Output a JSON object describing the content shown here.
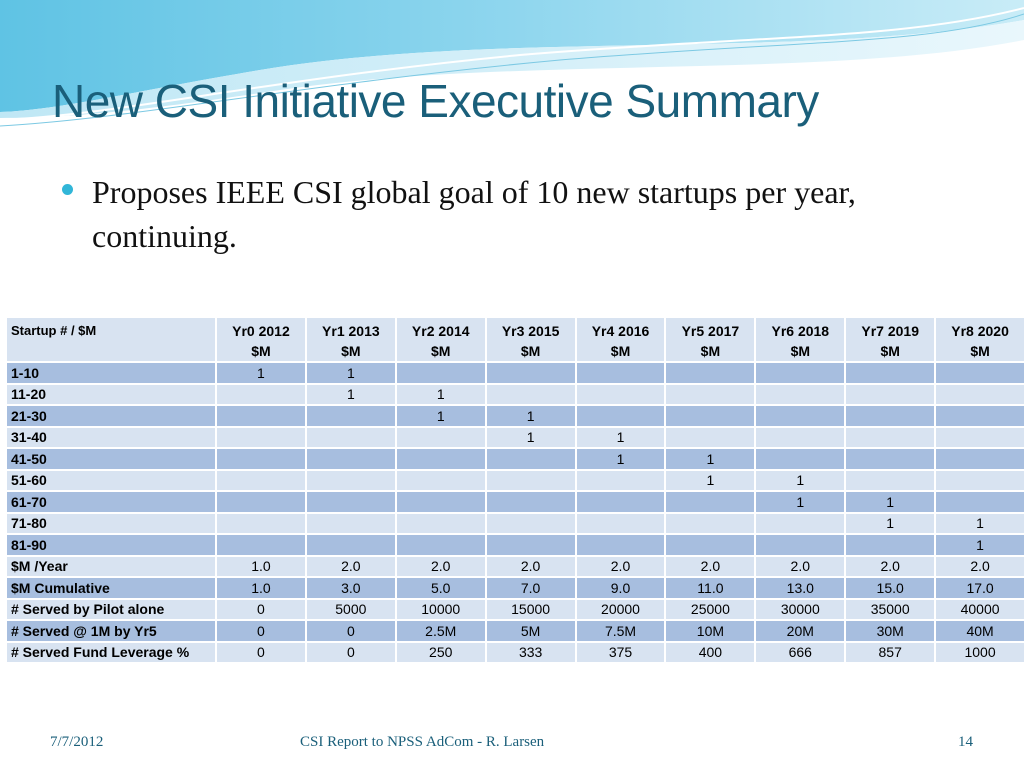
{
  "slide": {
    "title": "New CSI Initiative Executive Summary",
    "bullet": "Proposes IEEE CSI global goal of 10 new startups per year, continuing.",
    "colors": {
      "title": "#1a5f7a",
      "bullet": "#31b6d8",
      "row_dark": "#a7bedf",
      "row_light": "#d8e3f1"
    }
  },
  "table": {
    "header": {
      "rowhead": "Startup # / $M",
      "years": [
        {
          "line1": "Yr0 2012",
          "line2": "$M"
        },
        {
          "line1": "Yr1 2013",
          "line2": "$M"
        },
        {
          "line1": "Yr2 2014",
          "line2": "$M"
        },
        {
          "line1": "Yr3 2015",
          "line2": "$M"
        },
        {
          "line1": "Yr4 2016",
          "line2": "$M"
        },
        {
          "line1": "Yr5 2017",
          "line2": "$M"
        },
        {
          "line1": "Yr6 2018",
          "line2": "$M"
        },
        {
          "line1": "Yr7 2019",
          "line2": "$M"
        },
        {
          "line1": "Yr8 2020",
          "line2": "$M"
        }
      ]
    },
    "rows": [
      {
        "label": "1-10",
        "cells": [
          "1",
          "1",
          "",
          "",
          "",
          "",
          "",
          "",
          ""
        ]
      },
      {
        "label": "11-20",
        "cells": [
          "",
          "1",
          "1",
          "",
          "",
          "",
          "",
          "",
          ""
        ]
      },
      {
        "label": "21-30",
        "cells": [
          "",
          "",
          "1",
          "1",
          "",
          "",
          "",
          "",
          ""
        ]
      },
      {
        "label": "31-40",
        "cells": [
          "",
          "",
          "",
          "1",
          "1",
          "",
          "",
          "",
          ""
        ]
      },
      {
        "label": "41-50",
        "cells": [
          "",
          "",
          "",
          "",
          "1",
          "1",
          "",
          "",
          ""
        ]
      },
      {
        "label": "51-60",
        "cells": [
          "",
          "",
          "",
          "",
          "",
          "1",
          "1",
          "",
          ""
        ]
      },
      {
        "label": "61-70",
        "cells": [
          "",
          "",
          "",
          "",
          "",
          "",
          "1",
          "1",
          ""
        ]
      },
      {
        "label": "71-80",
        "cells": [
          "",
          "",
          "",
          "",
          "",
          "",
          "",
          "1",
          "1"
        ]
      },
      {
        "label": "81-90",
        "cells": [
          "",
          "",
          "",
          "",
          "",
          "",
          "",
          "",
          "1"
        ]
      },
      {
        "label": "$M /Year",
        "cells": [
          "1.0",
          "2.0",
          "2.0",
          "2.0",
          "2.0",
          "2.0",
          "2.0",
          "2.0",
          "2.0"
        ]
      },
      {
        "label": "$M Cumulative",
        "cells": [
          "1.0",
          "3.0",
          "5.0",
          "7.0",
          "9.0",
          "11.0",
          "13.0",
          "15.0",
          "17.0"
        ]
      },
      {
        "label": "# Served by Pilot alone",
        "cells": [
          "0",
          "5000",
          "10000",
          "15000",
          "20000",
          "25000",
          "30000",
          "35000",
          "40000"
        ]
      },
      {
        "label": "# Served @ 1M by Yr5",
        "cells": [
          "0",
          "0",
          "2.5M",
          "5M",
          "7.5M",
          "10M",
          "20M",
          "30M",
          "40M"
        ]
      },
      {
        "label": "# Served Fund Leverage %",
        "cells": [
          "0",
          "0",
          "250",
          "333",
          "375",
          "400",
          "666",
          "857",
          "1000"
        ]
      }
    ]
  },
  "footer": {
    "date": "7/7/2012",
    "center": "CSI Report to NPSS AdCom - R. Larsen",
    "page": "14"
  }
}
